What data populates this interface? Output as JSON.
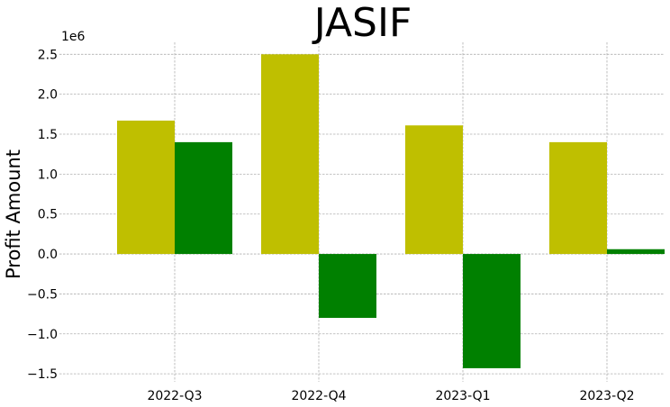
{
  "chart_data": {
    "type": "bar",
    "title": "JASIF",
    "xlabel": "",
    "ylabel": "Profit Amount",
    "y_offset_label": "1e6",
    "categories": [
      "2022-Q3",
      "2022-Q4",
      "2023-Q1",
      "2023-Q2"
    ],
    "series": [
      {
        "color": "#bfbf00",
        "values": [
          1670000,
          2500000,
          1610000,
          1400000
        ]
      },
      {
        "color": "#008000",
        "values": [
          1400000,
          -800000,
          -1430000,
          60000
        ]
      }
    ],
    "yticks": [
      -1.5,
      -1.0,
      -0.5,
      0.0,
      0.5,
      1.0,
      1.5,
      2.0,
      2.5
    ],
    "ytick_labels": [
      "−1.5",
      "−1.0",
      "−0.5",
      "0.0",
      "0.5",
      "1.0",
      "1.5",
      "2.0",
      "2.5"
    ],
    "ylim": [
      -1.6,
      2.65
    ],
    "grid": true
  }
}
